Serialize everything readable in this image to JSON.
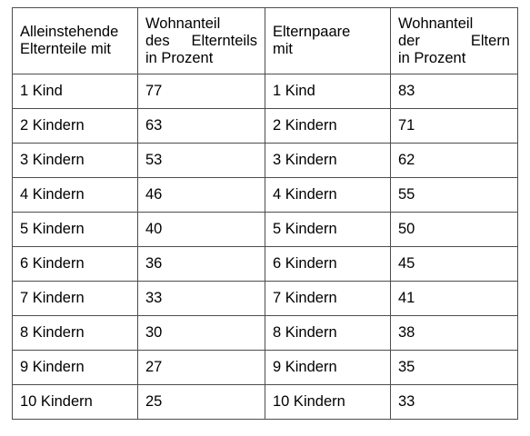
{
  "table": {
    "headers": {
      "single_parent": [
        "Alleinstehende",
        "Elternteile mit"
      ],
      "single_share": [
        "Wohnanteil",
        "des Elternteils",
        "in Prozent"
      ],
      "couple": [
        "Elternpaare",
        "mit"
      ],
      "couple_share": [
        "Wohnanteil",
        "der Eltern",
        "in Prozent"
      ]
    },
    "rows": [
      {
        "children": "1 Kind",
        "single_share": "77",
        "children_couple": "1 Kind",
        "couple_share": "83"
      },
      {
        "children": "2 Kindern",
        "single_share": "63",
        "children_couple": "2 Kindern",
        "couple_share": "71"
      },
      {
        "children": "3 Kindern",
        "single_share": "53",
        "children_couple": "3 Kindern",
        "couple_share": "62"
      },
      {
        "children": "4 Kindern",
        "single_share": "46",
        "children_couple": "4 Kindern",
        "couple_share": "55"
      },
      {
        "children": "5 Kindern",
        "single_share": "40",
        "children_couple": "5 Kindern",
        "couple_share": "50"
      },
      {
        "children": "6 Kindern",
        "single_share": "36",
        "children_couple": "6 Kindern",
        "couple_share": "45"
      },
      {
        "children": "7 Kindern",
        "single_share": "33",
        "children_couple": "7 Kindern",
        "couple_share": "41"
      },
      {
        "children": "8 Kindern",
        "single_share": "30",
        "children_couple": "8 Kindern",
        "couple_share": "38"
      },
      {
        "children": "9 Kindern",
        "single_share": "27",
        "children_couple": "9 Kindern",
        "couple_share": "35"
      },
      {
        "children": "10 Kindern",
        "single_share": "25",
        "children_couple": "10 Kindern",
        "couple_share": "33"
      }
    ]
  }
}
